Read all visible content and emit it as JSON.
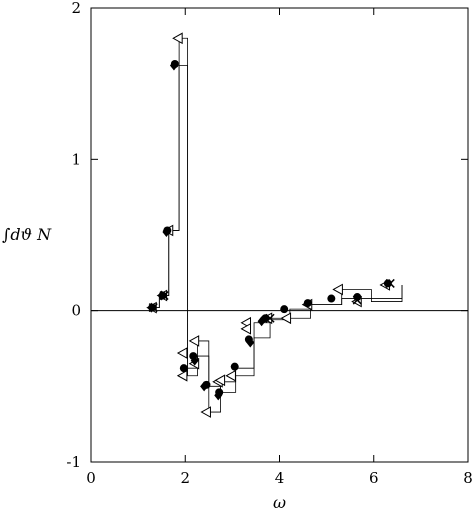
{
  "chart_data": {
    "type": "line",
    "xlabel": "ω",
    "ylabel": "∫dϑ N",
    "xlim": [
      0,
      8
    ],
    "ylim": [
      -1,
      2
    ],
    "x_ticks": [
      0,
      2,
      4,
      6,
      8
    ],
    "y_ticks": [
      -1,
      0,
      1,
      2
    ],
    "x_tick_labels": [
      "0",
      "2",
      "4",
      "6",
      "8"
    ],
    "y_tick_labels": [
      "-1",
      "0",
      "1",
      "2"
    ],
    "grid": false,
    "zero_line": true,
    "histograms": [
      {
        "name": "",
        "edges": [
          1.24,
          1.45,
          1.65,
          1.87,
          2.05,
          2.26,
          2.5,
          2.75,
          3.07,
          3.46,
          3.8,
          4.22,
          4.66,
          5.32,
          5.95,
          6.6
        ],
        "values": [
          0.02,
          0.1,
          0.53,
          1.8,
          -0.43,
          -0.2,
          -0.67,
          -0.47,
          -0.43,
          -0.08,
          -0.05,
          -0.05,
          0.04,
          0.14,
          0.06,
          0.17
        ]
      },
      {
        "name": "",
        "edges": [
          1.24,
          1.45,
          1.65,
          1.87,
          2.05,
          2.26,
          2.5,
          2.75,
          3.07,
          3.46,
          3.8,
          4.22,
          4.66,
          5.32,
          5.95,
          6.6
        ],
        "values": [
          0.02,
          0.1,
          0.53,
          1.62,
          -0.38,
          -0.3,
          -0.5,
          -0.54,
          -0.38,
          -0.18,
          -0.06,
          0.01,
          0.04,
          0.08,
          0.08,
          0.17
        ]
      }
    ],
    "series": [
      {
        "name": "",
        "marker": "triangle-left-open",
        "x": [
          1.3,
          1.52,
          1.65,
          1.85,
          1.95,
          2.2,
          2.45,
          2.7,
          2.98,
          3.3,
          3.75,
          4.15,
          4.6,
          5.25,
          5.65,
          6.25
        ],
        "y": [
          0.02,
          0.1,
          0.53,
          1.8,
          -0.43,
          -0.2,
          -0.67,
          -0.47,
          -0.43,
          -0.08,
          -0.05,
          -0.05,
          0.04,
          0.14,
          0.06,
          0.17
        ]
      },
      {
        "name": "",
        "marker": "triangle-left-open",
        "x": [
          1.95,
          2.2,
          2.75,
          3.3
        ],
        "y": [
          -0.28,
          -0.35,
          -0.46,
          -0.12
        ]
      },
      {
        "name": "",
        "marker": "circle-filled",
        "x": [
          1.3,
          1.52,
          1.62,
          1.78,
          1.97,
          2.17,
          2.45,
          2.72,
          3.05,
          3.35,
          3.7,
          4.1,
          4.6,
          5.1,
          5.65,
          6.3
        ],
        "y": [
          0.02,
          0.1,
          0.53,
          1.63,
          -0.38,
          -0.3,
          -0.49,
          -0.54,
          -0.37,
          -0.19,
          -0.05,
          0.01,
          0.05,
          0.08,
          0.09,
          0.18
        ]
      },
      {
        "name": "",
        "marker": "diamond-filled",
        "x": [
          1.28,
          1.5,
          1.6,
          1.76,
          2.2,
          2.4,
          2.7,
          3.38,
          3.62
        ],
        "y": [
          0.02,
          0.1,
          0.52,
          1.62,
          -0.33,
          -0.5,
          -0.56,
          -0.21,
          -0.07
        ]
      },
      {
        "name": "",
        "marker": "cross",
        "x": [
          1.32,
          1.55,
          3.8,
          5.65,
          6.35
        ],
        "y": [
          0.02,
          0.1,
          -0.05,
          0.07,
          0.18
        ]
      }
    ]
  }
}
